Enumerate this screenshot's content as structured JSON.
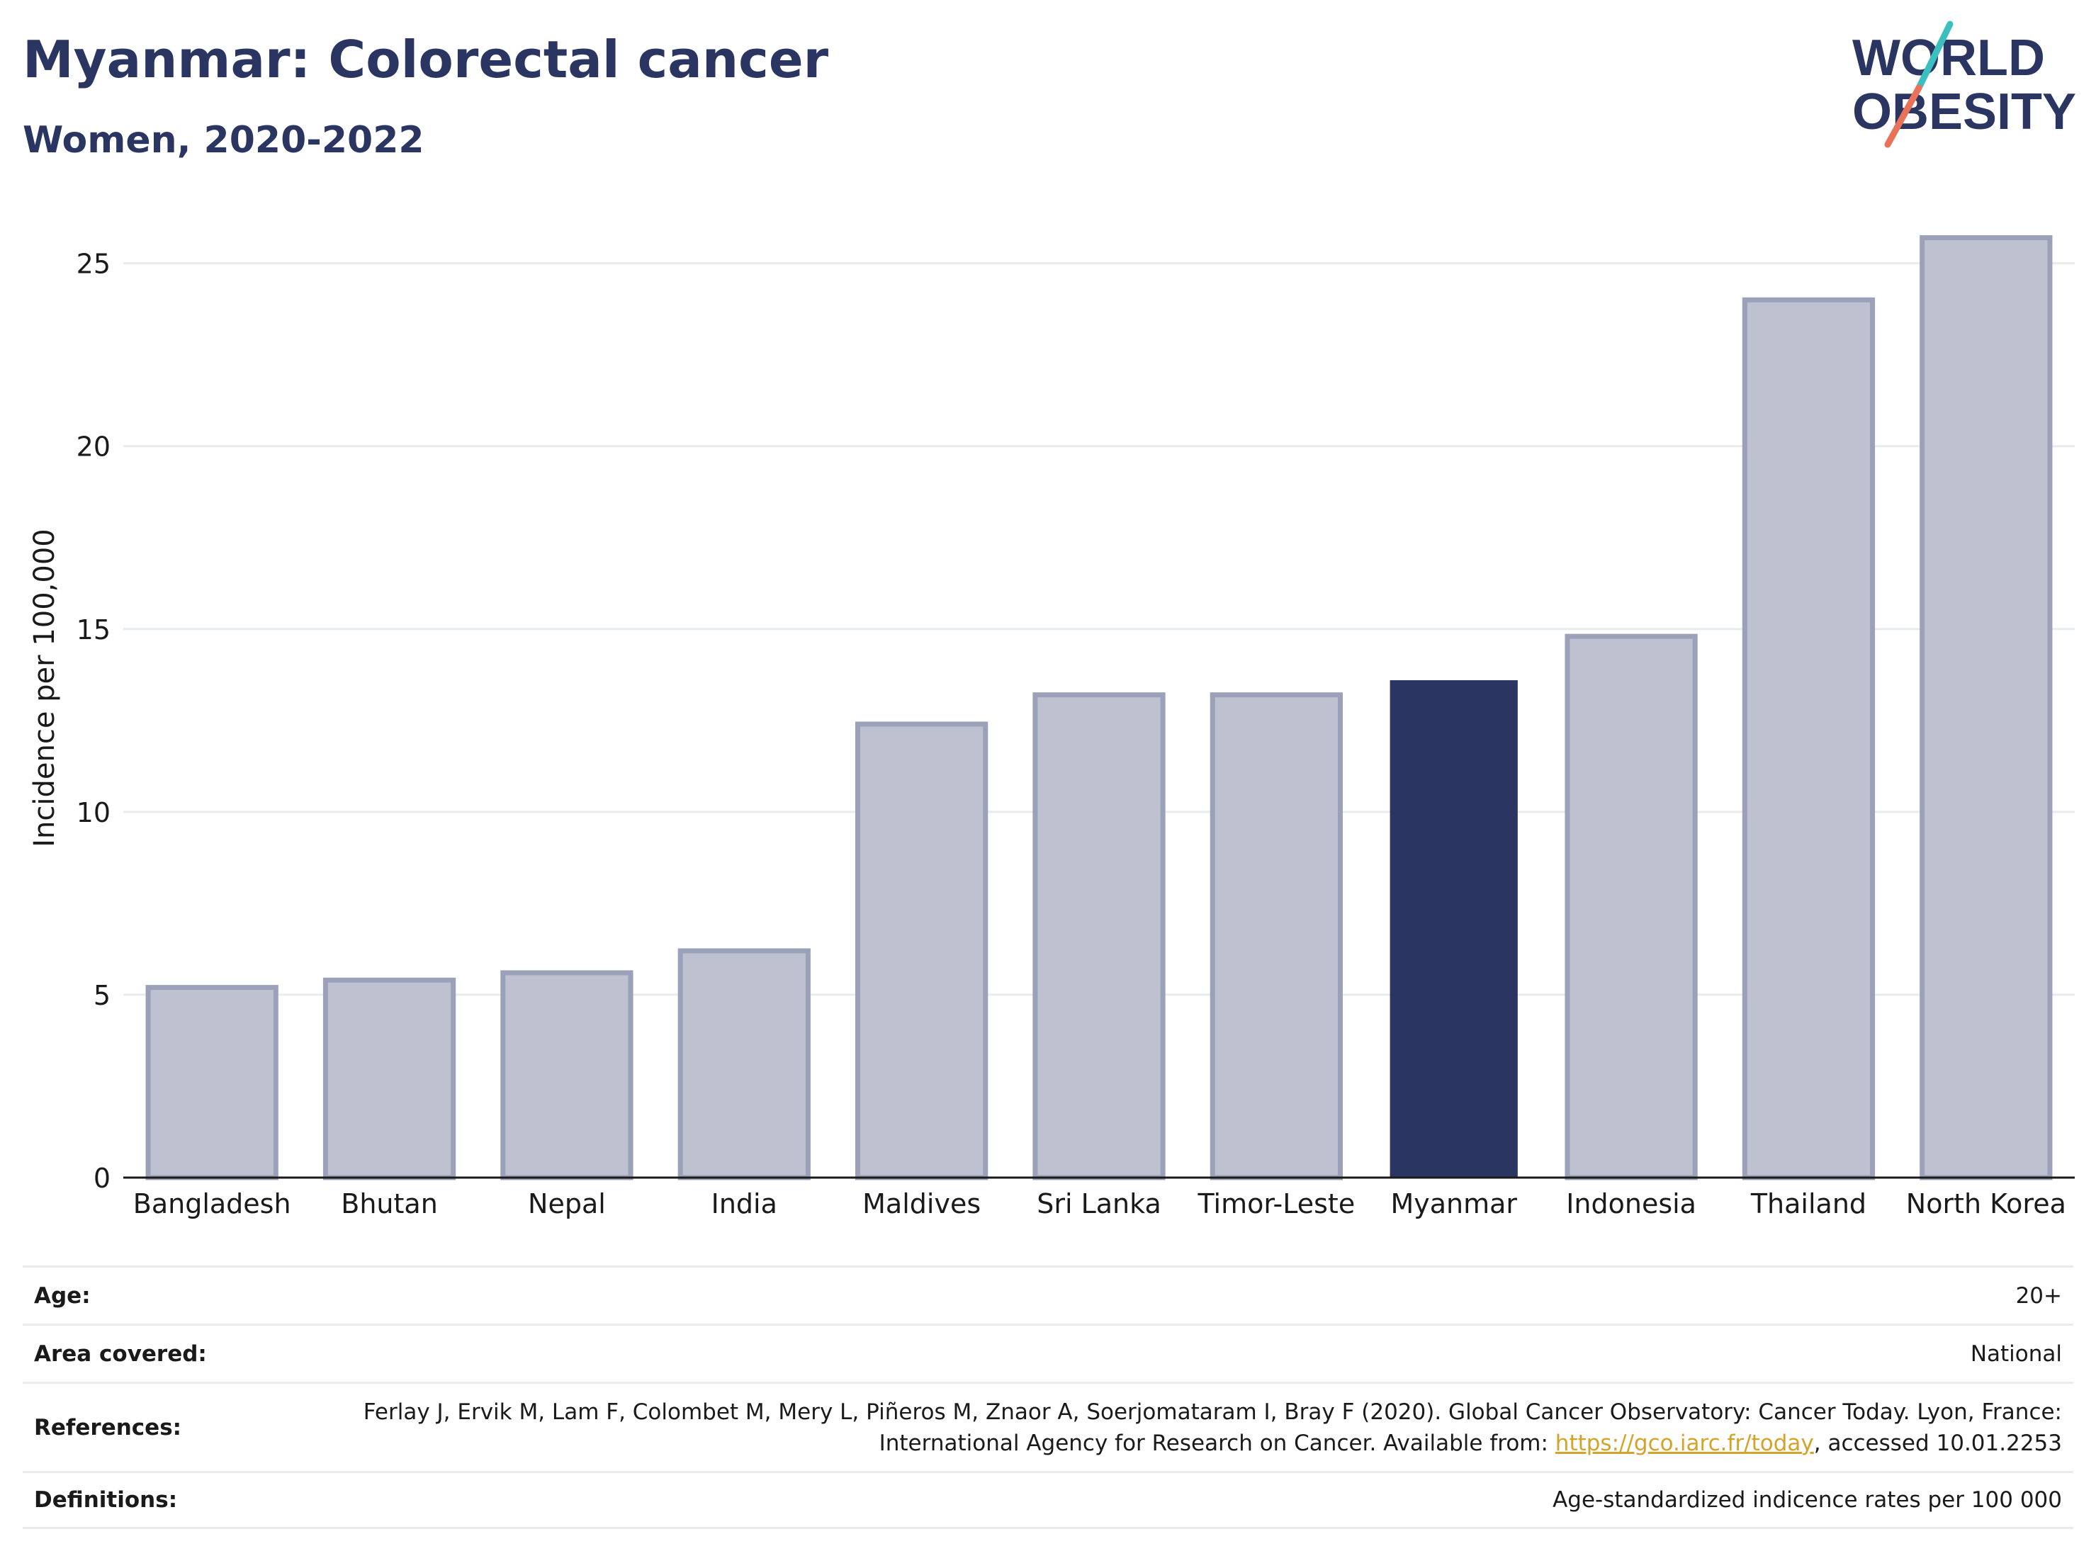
{
  "header": {
    "title": "Myanmar: Colorectal cancer",
    "subtitle": "Women, 2020-2022",
    "logo_line1": "WORLD",
    "logo_line2": "OBESITY"
  },
  "colors": {
    "highlight": "#2b3562",
    "bar": "#bec2d0",
    "bar_edge": "#9aa1b8",
    "logo_teal": "#3cbfbf",
    "logo_coral": "#e8735a",
    "link": "#d4a32a"
  },
  "chart_data": {
    "type": "bar",
    "title": "Myanmar: Colorectal cancer",
    "subtitle": "Women, 2020-2022",
    "xlabel": "",
    "ylabel": "Incidence per 100,000",
    "categories": [
      "Bangladesh",
      "Bhutan",
      "Nepal",
      "India",
      "Maldives",
      "Sri Lanka",
      "Timor-Leste",
      "Myanmar",
      "Indonesia",
      "Thailand",
      "North Korea"
    ],
    "values": [
      5.2,
      5.4,
      5.6,
      6.2,
      12.4,
      13.2,
      13.2,
      13.6,
      14.8,
      24.0,
      25.7
    ],
    "highlight": "Myanmar",
    "ylim": [
      0,
      26
    ],
    "yticks": [
      0,
      5,
      10,
      15,
      20,
      25
    ],
    "grid": true,
    "legend": "none"
  },
  "meta": {
    "age_label": "Age:",
    "age_value": "20+",
    "area_label": "Area covered:",
    "area_value": "National",
    "references_label": "References:",
    "references_text_1": "Ferlay J, Ervik M, Lam F, Colombet M, Mery L, Piñeros M, Znaor A, Soerjomataram I, Bray F (2020). Global Cancer Observatory: Cancer Today. Lyon, France: International Agency for Research on Cancer. Available from: ",
    "references_link": "https://gco.iarc.fr/today",
    "references_text_2": ", accessed 10.01.2253",
    "definitions_label": "Definitions:",
    "definitions_value": "Age-standardized indicence rates per 100 000"
  }
}
